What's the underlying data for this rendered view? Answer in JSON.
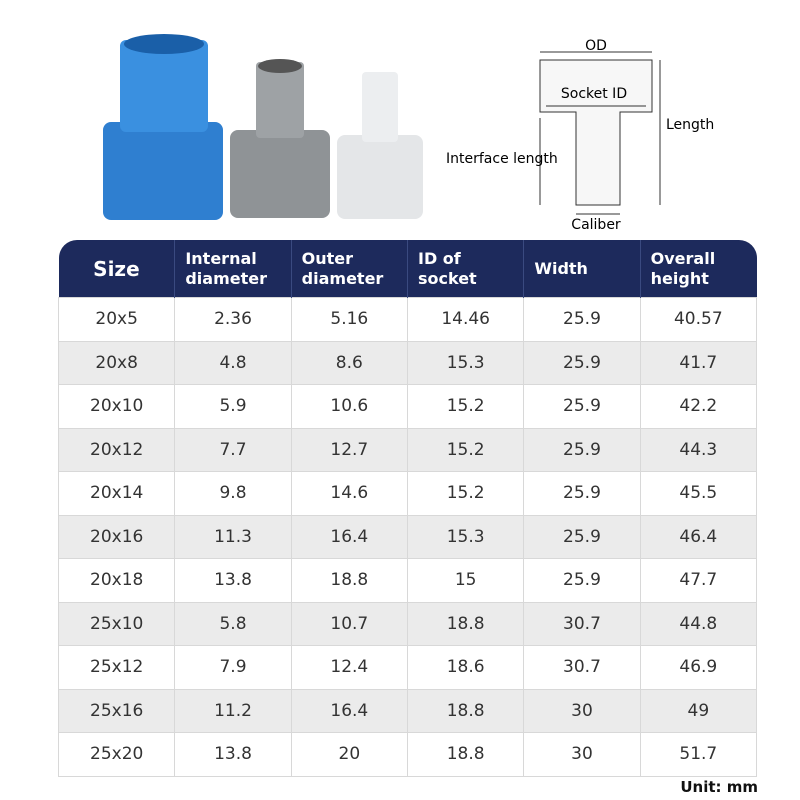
{
  "diagram": {
    "labels": {
      "od": "OD",
      "socket_id": "Socket ID",
      "length": "Length",
      "interface_length": "Interface length",
      "caliber": "Caliber"
    }
  },
  "table": {
    "headers": [
      "Size",
      "Internal diameter",
      "Outer diameter",
      "ID of socket",
      "Width",
      "Overall height"
    ],
    "rows": [
      [
        "20x5",
        "2.36",
        "5.16",
        "14.46",
        "25.9",
        "40.57"
      ],
      [
        "20x8",
        "4.8",
        "8.6",
        "15.3",
        "25.9",
        "41.7"
      ],
      [
        "20x10",
        "5.9",
        "10.6",
        "15.2",
        "25.9",
        "42.2"
      ],
      [
        "20x12",
        "7.7",
        "12.7",
        "15.2",
        "25.9",
        "44.3"
      ],
      [
        "20x14",
        "9.8",
        "14.6",
        "15.2",
        "25.9",
        "45.5"
      ],
      [
        "20x16",
        "11.3",
        "16.4",
        "15.3",
        "25.9",
        "46.4"
      ],
      [
        "20x18",
        "13.8",
        "18.8",
        "15",
        "25.9",
        "47.7"
      ],
      [
        "25x10",
        "5.8",
        "10.7",
        "18.8",
        "30.7",
        "44.8"
      ],
      [
        "25x12",
        "7.9",
        "12.4",
        "18.6",
        "30.7",
        "46.9"
      ],
      [
        "25x16",
        "11.2",
        "16.4",
        "18.8",
        "30",
        "49"
      ],
      [
        "25x20",
        "13.8",
        "20",
        "18.8",
        "30",
        "51.7"
      ]
    ]
  },
  "footer": {
    "unit": "Unit: mm"
  }
}
